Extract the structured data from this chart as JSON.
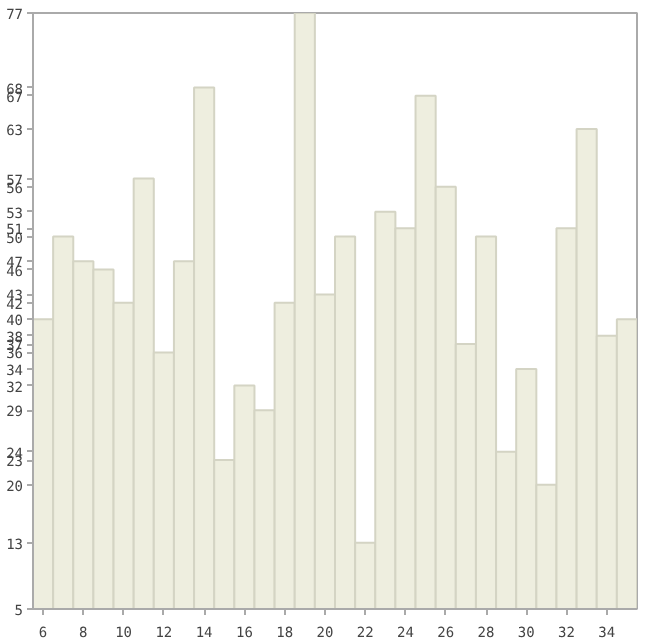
{
  "chart_data": {
    "type": "bar",
    "x": [
      6,
      7,
      8,
      9,
      10,
      11,
      12,
      13,
      14,
      15,
      16,
      17,
      18,
      19,
      20,
      21,
      22,
      23,
      24,
      25,
      26,
      27,
      28,
      29,
      30,
      31,
      32,
      33,
      34,
      35
    ],
    "series": [
      {
        "color": "#eeeedf",
        "values": [
          40,
          50,
          47,
          46,
          42,
          57,
          36,
          47,
          68,
          23,
          32,
          29,
          42,
          77,
          43,
          50,
          13,
          53,
          51,
          67,
          56,
          37,
          50,
          24,
          34,
          20,
          51,
          63,
          38,
          40
        ]
      }
    ],
    "xlim": [
      5.5,
      35.5
    ],
    "xticks": [
      6,
      8,
      10,
      12,
      14,
      16,
      18,
      20,
      22,
      24,
      26,
      28,
      30,
      32,
      34
    ],
    "ylim": [
      5,
      77
    ],
    "yticks": [
      5,
      13,
      20,
      23,
      24,
      29,
      32,
      34,
      36,
      37,
      38,
      40,
      42,
      43,
      46,
      47,
      50,
      51,
      53,
      56,
      57,
      63,
      67,
      68,
      77
    ],
    "grid": false
  }
}
